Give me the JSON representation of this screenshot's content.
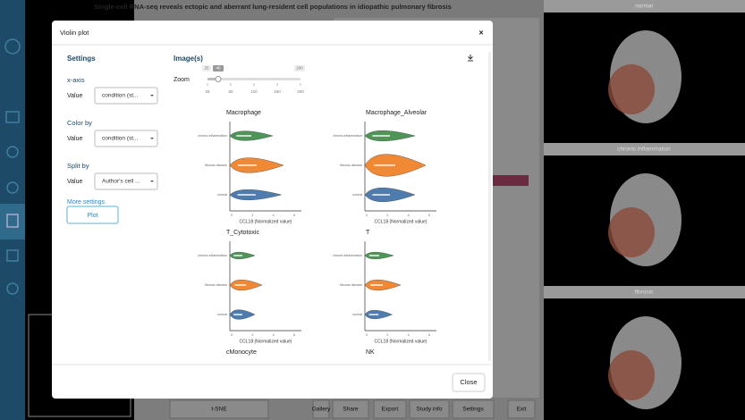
{
  "background": {
    "title": "Single-cell RNA-seq reveals ectopic and aberrant lung-resident cell populations in idiopathic pulmonary fibrosis",
    "panels": [
      "normal",
      "chronic inflammation",
      "fibrosis"
    ],
    "toolbar": [
      "t-SNE",
      "Gallery",
      "Share",
      "Export",
      "Study info",
      "Settings",
      "Exit"
    ]
  },
  "modal": {
    "title": "Violin plot",
    "close_icon": "×",
    "settings": {
      "heading": "Settings",
      "groups": [
        {
          "label": "x-axis",
          "field": "Value",
          "selected": "condition (st..."
        },
        {
          "label": "Color by",
          "field": "Value",
          "selected": "condition (st..."
        },
        {
          "label": "Split by",
          "field": "Value",
          "selected": "Author's cell ..."
        }
      ],
      "more": "More settings",
      "button": "Plot"
    },
    "images": {
      "heading": "Image(s)",
      "zoom_label": "Zoom",
      "zoom_min": "25",
      "zoom_value": "46",
      "zoom_max": "200",
      "zoom_ticks": [
        "25",
        "60",
        "110",
        "160",
        "200"
      ],
      "conditions": [
        "chronic inflammation",
        "fibrosis disease",
        "normal"
      ],
      "x_label": "CCL18 (Normalized value)",
      "x_ticks": [
        "0",
        "2",
        "4",
        "6"
      ],
      "plots": [
        "Macrophage",
        "Macrophage_Alveolar",
        "T_Cytotoxic",
        "T",
        "cMonocyte",
        "NK"
      ]
    },
    "footer_button": "Close"
  }
}
